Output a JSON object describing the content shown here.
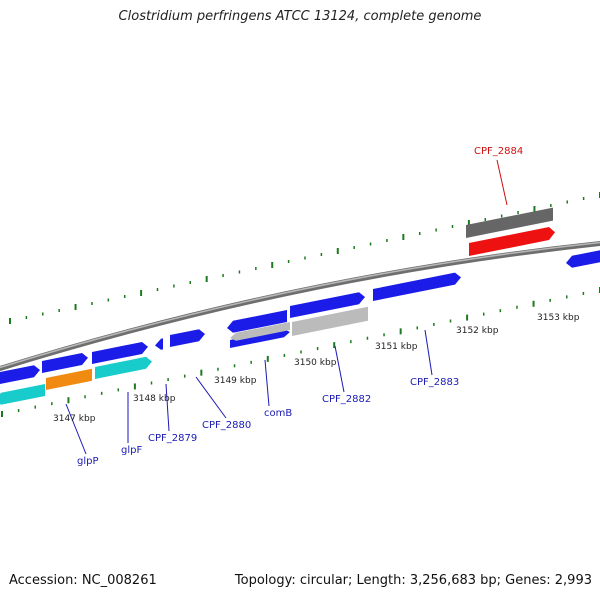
{
  "title": "Clostridium perfringens ATCC 13124, complete genome",
  "footer": {
    "accession": "Accession: NC_008261",
    "stats": "Topology: circular; Length: 3,256,683 bp; Genes: 2,993"
  },
  "colors": {
    "backbone": "#8c8c8c",
    "tick": "#1e7a1e",
    "blue": "#1c1ce8",
    "cyan": "#19cccc",
    "orange": "#f08a10",
    "red": "#ee1111",
    "gray": "#666666",
    "light_gray": "#bbbbbb",
    "blue_label": "#1a1ab4",
    "red_label": "#d01010"
  },
  "scale_labels": [
    "3147 kbp",
    "3148 kbp",
    "3149 kbp",
    "3150 kbp",
    "3151 kbp",
    "3152 kbp",
    "3153 kbp"
  ],
  "gene_labels": [
    {
      "text": "glpP",
      "color": "blue"
    },
    {
      "text": "glpF",
      "color": "blue"
    },
    {
      "text": "CPF_2879",
      "color": "blue"
    },
    {
      "text": "CPF_2880",
      "color": "blue"
    },
    {
      "text": "comB",
      "color": "blue"
    },
    {
      "text": "CPF_2882",
      "color": "blue"
    },
    {
      "text": "CPF_2883",
      "color": "blue"
    },
    {
      "text": "CPF_2884",
      "color": "red"
    }
  ]
}
